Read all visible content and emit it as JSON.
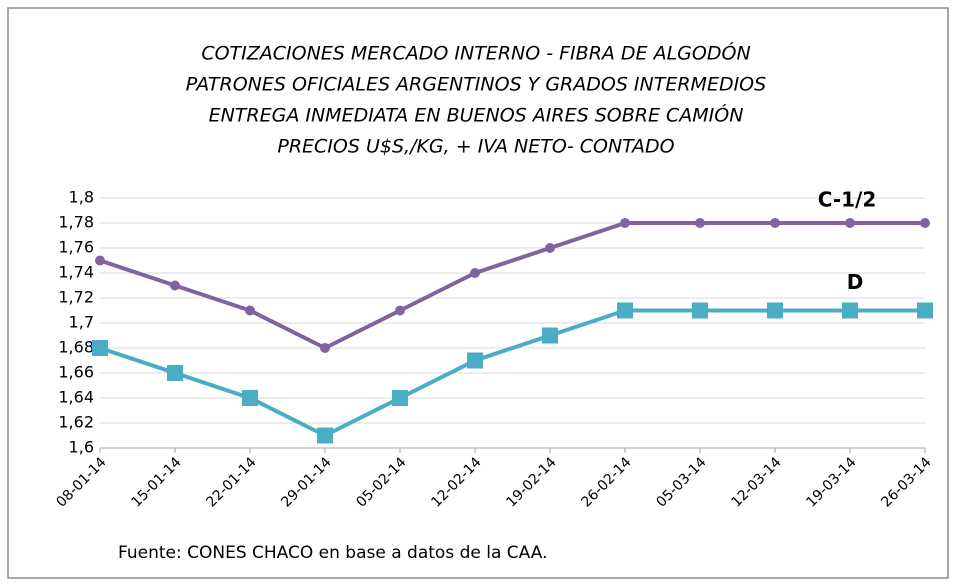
{
  "chart_data": {
    "type": "line",
    "title": [
      "COTIZACIONES MERCADO INTERNO - FIBRA DE ALGODÓN",
      "PATRONES OFICIALES ARGENTINOS Y GRADOS INTERMEDIOS",
      "ENTREGA INMEDIATA EN BUENOS AIRES SOBRE CAMIÓN",
      "PRECIOS U$S,/KG, + IVA NETO- CONTADO"
    ],
    "categories": [
      "08-01-14",
      "15-01-14",
      "22-01-14",
      "29-01-14",
      "05-02-14",
      "12-02-14",
      "19-02-14",
      "26-02-14",
      "05-03-14",
      "12-03-14",
      "19-03-14",
      "26-03-14"
    ],
    "series": [
      {
        "name": "C-1/2",
        "color": "#8064a2",
        "marker": "circle",
        "values": [
          1.75,
          1.73,
          1.71,
          1.68,
          1.71,
          1.74,
          1.76,
          1.78,
          1.78,
          1.78,
          1.78,
          1.78
        ]
      },
      {
        "name": "D",
        "color": "#4bacc6",
        "marker": "square",
        "values": [
          1.68,
          1.66,
          1.64,
          1.61,
          1.64,
          1.67,
          1.69,
          1.71,
          1.71,
          1.71,
          1.71,
          1.71
        ]
      }
    ],
    "ylim": [
      1.6,
      1.8
    ],
    "yticks": [
      {
        "value": 1.6,
        "label": "1,6"
      },
      {
        "value": 1.62,
        "label": "1,62"
      },
      {
        "value": 1.64,
        "label": "1,64"
      },
      {
        "value": 1.66,
        "label": "1,66"
      },
      {
        "value": 1.68,
        "label": "1,68"
      },
      {
        "value": 1.7,
        "label": "1,7"
      },
      {
        "value": 1.72,
        "label": "1,72"
      },
      {
        "value": 1.74,
        "label": "1,74"
      },
      {
        "value": 1.76,
        "label": "1,76"
      },
      {
        "value": 1.78,
        "label": "1,78"
      },
      {
        "value": 1.8,
        "label": "1,8"
      }
    ],
    "grid": true,
    "source": "Fuente: CONES CHACO en base a datos de la CAA."
  }
}
